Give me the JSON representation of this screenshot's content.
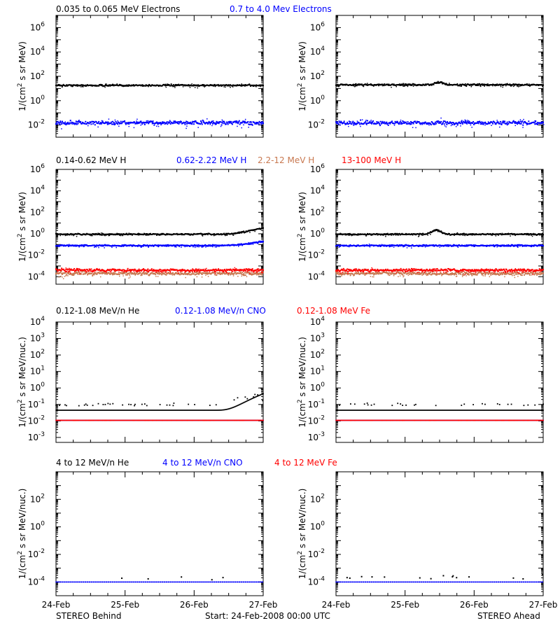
{
  "colors": {
    "black": "#000000",
    "blue": "#0000ff",
    "salmon": "#c87850",
    "red": "#ff0000",
    "lightred": "#e06060"
  },
  "footer": {
    "left": "STEREO Behind",
    "center": "Start: 24-Feb-2008 00:00 UTC",
    "right": "STEREO Ahead"
  },
  "chart_data": [
    {
      "type": "scatter",
      "row": 0,
      "legend": [
        {
          "label": "0.035 to 0.065 MeV Electrons",
          "color": "black"
        },
        {
          "label": "0.7 to 4.0 Mev Electrons",
          "color": "blue"
        }
      ],
      "ylabel_lines": [
        "1/(cm",
        "2",
        " s sr MeV)"
      ],
      "log_y": true,
      "ylim": [
        0.001,
        10000000
      ],
      "y_ticks": [
        {
          "exp": "6"
        },
        {
          "exp": "4"
        },
        {
          "exp": "2"
        },
        {
          "exp": "0"
        },
        {
          "exp": "-2"
        }
      ],
      "panels": [
        {
          "spacecraft": "STEREO Behind",
          "series": [
            {
              "color": "black",
              "level": 18,
              "noise": 0.07,
              "style": "band"
            },
            {
              "color": "blue",
              "level": 0.015,
              "noise": 0.15,
              "style": "band"
            }
          ]
        },
        {
          "spacecraft": "STEREO Ahead",
          "series": [
            {
              "color": "black",
              "level": 20,
              "noise": 0.07,
              "style": "band",
              "bump_day": 1.5,
              "bump_factor": 1.6
            },
            {
              "color": "blue",
              "level": 0.015,
              "noise": 0.15,
              "style": "band"
            }
          ]
        }
      ]
    },
    {
      "type": "scatter",
      "row": 1,
      "legend": [
        {
          "label": "0.14-0.62 MeV H",
          "color": "black"
        },
        {
          "label": "0.62-2.22 MeV H",
          "color": "blue"
        },
        {
          "label": "2.2-12 MeV H",
          "color": "salmon"
        },
        {
          "label": "13-100 MeV H",
          "color": "red"
        }
      ],
      "log_y": true,
      "ylim": [
        2e-05,
        1000000
      ],
      "y_ticks": [
        {
          "exp": "6"
        },
        {
          "exp": "4"
        },
        {
          "exp": "2"
        },
        {
          "exp": "0"
        },
        {
          "exp": "-2"
        },
        {
          "exp": "-4"
        }
      ],
      "panels": [
        {
          "spacecraft": "STEREO Behind",
          "series": [
            {
              "color": "black",
              "level": 0.9,
              "noise": 0.06,
              "style": "band",
              "rise_end": 4
            },
            {
              "color": "blue",
              "level": 0.08,
              "noise": 0.06,
              "style": "band",
              "rise_end": 2.5
            },
            {
              "color": "salmon",
              "level": 0.0002,
              "noise": 0.15,
              "style": "band"
            },
            {
              "color": "red",
              "level": 0.0004,
              "noise": 0.12,
              "style": "band"
            }
          ]
        },
        {
          "spacecraft": "STEREO Ahead",
          "series": [
            {
              "color": "black",
              "level": 0.9,
              "noise": 0.06,
              "style": "band",
              "bump_day": 1.45,
              "bump_factor": 2.5
            },
            {
              "color": "blue",
              "level": 0.08,
              "noise": 0.06,
              "style": "band"
            },
            {
              "color": "salmon",
              "level": 0.0002,
              "noise": 0.15,
              "style": "band"
            },
            {
              "color": "red",
              "level": 0.0004,
              "noise": 0.12,
              "style": "band"
            }
          ]
        }
      ]
    },
    {
      "type": "scatter",
      "row": 2,
      "legend": [
        {
          "label": "0.12-1.08 MeV/n He",
          "color": "black"
        },
        {
          "label": "0.12-1.08 MeV/n CNO",
          "color": "blue"
        },
        {
          "label": "0.12-1.08 MeV Fe",
          "color": "red"
        }
      ],
      "log_y": true,
      "ylim": [
        0.0005,
        10000
      ],
      "y_ticks": [
        {
          "exp": "4"
        },
        {
          "exp": "3"
        },
        {
          "exp": "2"
        },
        {
          "exp": "1"
        },
        {
          "exp": "0"
        },
        {
          "exp": "-1"
        },
        {
          "exp": "-2"
        },
        {
          "exp": "-3"
        }
      ],
      "panels": [
        {
          "spacecraft": "STEREO Behind",
          "series": [
            {
              "color": "black",
              "level": 0.045,
              "style": "floor",
              "sparse_level": 0.1,
              "rise_end": 10
            },
            {
              "color": "blue",
              "level": 0.011,
              "style": "floor"
            },
            {
              "color": "red",
              "level": 0.011,
              "style": "floor"
            }
          ]
        },
        {
          "spacecraft": "STEREO Ahead",
          "series": [
            {
              "color": "black",
              "level": 0.045,
              "style": "floor",
              "sparse_level": 0.1
            },
            {
              "color": "blue",
              "level": 0.011,
              "style": "floor"
            },
            {
              "color": "red",
              "level": 0.011,
              "style": "floor"
            }
          ]
        }
      ]
    },
    {
      "type": "scatter",
      "row": 3,
      "legend": [
        {
          "label": "4 to 12 MeV/n He",
          "color": "black"
        },
        {
          "label": "4 to 12 MeV/n CNO",
          "color": "blue"
        },
        {
          "label": "4 to 12 MeV Fe",
          "color": "red"
        }
      ],
      "log_y": true,
      "ylim": [
        1e-05,
        10000
      ],
      "y_ticks": [
        {
          "exp": "2"
        },
        {
          "exp": "0"
        },
        {
          "exp": "-2"
        },
        {
          "exp": "-4"
        }
      ],
      "panels": [
        {
          "spacecraft": "STEREO Behind",
          "series": [
            {
              "color": "blue",
              "level": 0.0001,
              "style": "floor_dashed"
            },
            {
              "color": "black",
              "level": 0.0002,
              "style": "sparse"
            }
          ]
        },
        {
          "spacecraft": "STEREO Ahead",
          "series": [
            {
              "color": "blue",
              "level": 0.0001,
              "style": "floor_dashed"
            },
            {
              "color": "black",
              "level": 0.0002,
              "style": "sparse"
            }
          ]
        }
      ]
    }
  ],
  "x_axis": {
    "ticks": [
      "24-Feb",
      "25-Feb",
      "26-Feb",
      "27-Feb"
    ],
    "xlim_days": [
      0,
      3
    ]
  },
  "ylabel": {
    "flux": [
      "1/(cm",
      "2",
      " s sr MeV)"
    ],
    "nuc": [
      "1/(cm",
      "2",
      " s sr MeV/nuc.)"
    ]
  }
}
